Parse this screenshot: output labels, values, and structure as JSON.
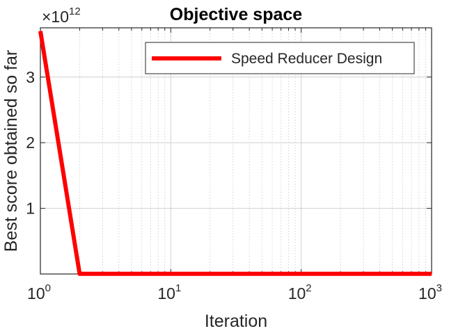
{
  "chart_data": {
    "type": "line",
    "title": "Objective space",
    "xlabel": "Iteration",
    "ylabel": "Best score obtained so far",
    "x_scale": "log",
    "xlim": [
      1,
      1000
    ],
    "ylim": [
      0,
      3750000000000.0
    ],
    "y_exponent_label": {
      "base": "×10",
      "exponent": "12"
    },
    "x_ticks": [
      {
        "value": 1,
        "base": "10",
        "exponent": "0"
      },
      {
        "value": 10,
        "base": "10",
        "exponent": "1"
      },
      {
        "value": 100,
        "base": "10",
        "exponent": "2"
      },
      {
        "value": 1000,
        "base": "10",
        "exponent": "3"
      }
    ],
    "y_ticks": [
      {
        "value": 1000000000000.0,
        "label": "1"
      },
      {
        "value": 2000000000000.0,
        "label": "2"
      },
      {
        "value": 3000000000000.0,
        "label": "3"
      }
    ],
    "grid": true,
    "legend_position": "top-right",
    "series": [
      {
        "name": "Speed Reducer Design",
        "color": "#ff0000",
        "x": [
          1,
          2,
          3,
          5,
          10,
          50,
          100,
          500,
          1000
        ],
        "y": [
          3700000000000.0,
          3000000000.0,
          3000000000.0,
          3000000000.0,
          3000000000.0,
          3000000000.0,
          3000000000.0,
          3000000000.0,
          3000000000.0
        ]
      }
    ]
  }
}
